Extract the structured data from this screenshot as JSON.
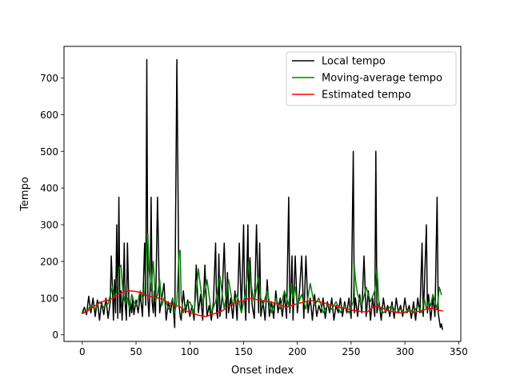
{
  "chart_data": {
    "type": "line",
    "title": "",
    "xlabel": "Onset index",
    "ylabel": "Tempo",
    "xlim": [
      -17,
      352
    ],
    "ylim": [
      -18,
      786
    ],
    "xticks": [
      0,
      50,
      100,
      150,
      200,
      250,
      300,
      350
    ],
    "yticks": [
      0,
      100,
      200,
      300,
      400,
      500,
      600,
      700
    ],
    "grid": false,
    "legend_position": "top-right",
    "series": [
      {
        "name": "Local tempo",
        "color": "#000000",
        "x": [
          0,
          2,
          4,
          6,
          8,
          10,
          12,
          14,
          16,
          18,
          20,
          22,
          24,
          26,
          27,
          28,
          29,
          30,
          31,
          32,
          33,
          34,
          35,
          36,
          37,
          38,
          39,
          40,
          41,
          42,
          43,
          44,
          45,
          46,
          47,
          48,
          50,
          52,
          54,
          56,
          58,
          59,
          60,
          61,
          62,
          63,
          64,
          65,
          66,
          67,
          68,
          70,
          72,
          74,
          76,
          78,
          80,
          82,
          84,
          86,
          88,
          90,
          91,
          92,
          94,
          96,
          98,
          100,
          102,
          104,
          106,
          108,
          110,
          112,
          114,
          116,
          118,
          120,
          122,
          124,
          125,
          126,
          127,
          128,
          130,
          132,
          134,
          135,
          136,
          138,
          140,
          142,
          144,
          146,
          148,
          150,
          151,
          152,
          154,
          155,
          156,
          158,
          160,
          162,
          164,
          165,
          166,
          168,
          170,
          172,
          174,
          176,
          178,
          180,
          182,
          184,
          186,
          188,
          190,
          192,
          193,
          194,
          195,
          196,
          198,
          200,
          202,
          204,
          206,
          208,
          210,
          212,
          214,
          216,
          218,
          220,
          222,
          224,
          226,
          228,
          230,
          232,
          234,
          236,
          238,
          240,
          242,
          244,
          246,
          248,
          250,
          252,
          253,
          254,
          256,
          258,
          260,
          262,
          264,
          266,
          268,
          270,
          272,
          273,
          274,
          276,
          278,
          280,
          282,
          284,
          286,
          288,
          290,
          292,
          294,
          296,
          298,
          300,
          302,
          304,
          306,
          308,
          310,
          312,
          314,
          316,
          317,
          318,
          320,
          321,
          322,
          324,
          326,
          328,
          330,
          331,
          332,
          333,
          334,
          335
        ],
        "y": [
          60,
          75,
          55,
          105,
          60,
          100,
          50,
          95,
          40,
          90,
          55,
          100,
          45,
          90,
          215,
          130,
          40,
          150,
          60,
          300,
          45,
          375,
          60,
          120,
          40,
          100,
          250,
          80,
          40,
          250,
          120,
          50,
          90,
          60,
          100,
          55,
          95,
          60,
          110,
          50,
          250,
          80,
          750,
          100,
          50,
          120,
          375,
          90,
          60,
          120,
          50,
          375,
          60,
          100,
          140,
          40,
          90,
          60,
          100,
          20,
          750,
          80,
          50,
          40,
          120,
          60,
          95,
          50,
          80,
          40,
          190,
          60,
          110,
          40,
          190,
          50,
          80,
          40,
          90,
          250,
          60,
          45,
          220,
          50,
          100,
          250,
          45,
          170,
          60,
          100,
          45,
          120,
          40,
          250,
          60,
          300,
          100,
          40,
          300,
          60,
          210,
          80,
          45,
          300,
          60,
          250,
          50,
          90,
          40,
          150,
          50,
          90,
          45,
          120,
          60,
          100,
          50,
          110,
          45,
          375,
          60,
          120,
          215,
          40,
          215,
          60,
          120,
          215,
          45,
          215,
          60,
          100,
          40,
          110,
          50,
          80,
          60,
          100,
          45,
          90,
          60,
          100,
          40,
          80,
          60,
          100,
          50,
          90,
          60,
          100,
          45,
          500,
          60,
          100,
          50,
          110,
          60,
          215,
          50,
          120,
          40,
          100,
          50,
          500,
          60,
          90,
          40,
          100,
          60,
          80,
          50,
          90,
          45,
          100,
          60,
          80,
          50,
          100,
          60,
          80,
          45,
          90,
          40,
          100,
          60,
          250,
          50,
          120,
          300,
          60,
          110,
          40,
          100,
          50,
          375,
          60,
          40,
          20,
          30,
          15
        ]
      },
      {
        "name": "Moving-average tempo",
        "color": "#008000",
        "x": [
          0,
          4,
          8,
          12,
          16,
          20,
          24,
          28,
          30,
          32,
          34,
          36,
          38,
          40,
          42,
          44,
          46,
          48,
          50,
          52,
          54,
          56,
          58,
          60,
          61,
          62,
          64,
          66,
          68,
          70,
          72,
          74,
          76,
          78,
          80,
          82,
          84,
          86,
          88,
          90,
          91,
          92,
          94,
          96,
          100,
          104,
          108,
          112,
          116,
          120,
          124,
          128,
          132,
          136,
          140,
          144,
          148,
          152,
          155,
          156,
          158,
          160,
          164,
          166,
          168,
          172,
          176,
          180,
          184,
          188,
          192,
          194,
          196,
          198,
          200,
          204,
          208,
          212,
          216,
          220,
          224,
          228,
          232,
          236,
          240,
          244,
          248,
          252,
          253,
          254,
          256,
          260,
          264,
          268,
          272,
          274,
          276,
          280,
          284,
          288,
          292,
          296,
          300,
          304,
          308,
          312,
          316,
          318,
          320,
          322,
          324,
          326,
          328,
          330,
          332,
          334
        ],
        "y": [
          60,
          65,
          80,
          70,
          90,
          75,
          85,
          130,
          100,
          120,
          180,
          190,
          110,
          85,
          100,
          70,
          110,
          90,
          80,
          95,
          120,
          100,
          110,
          250,
          275,
          180,
          120,
          200,
          90,
          110,
          150,
          80,
          100,
          90,
          70,
          80,
          100,
          60,
          90,
          225,
          230,
          100,
          60,
          80,
          90,
          60,
          180,
          80,
          150,
          60,
          90,
          160,
          70,
          150,
          80,
          110,
          60,
          120,
          200,
          160,
          120,
          90,
          160,
          100,
          80,
          120,
          60,
          100,
          70,
          120,
          80,
          140,
          100,
          130,
          80,
          110,
          70,
          140,
          80,
          100,
          60,
          80,
          70,
          90,
          60,
          80,
          60,
          90,
          190,
          150,
          110,
          80,
          130,
          90,
          120,
          180,
          80,
          60,
          70,
          80,
          60,
          70,
          60,
          70,
          60,
          80,
          60,
          100,
          70,
          90,
          80,
          110,
          90,
          70,
          130,
          110
        ]
      },
      {
        "name": "Estimated tempo",
        "color": "#ff0000",
        "x": [
          0,
          5,
          10,
          15,
          20,
          25,
          30,
          35,
          40,
          45,
          50,
          55,
          60,
          65,
          70,
          75,
          80,
          85,
          90,
          95,
          100,
          105,
          110,
          115,
          120,
          125,
          130,
          135,
          140,
          145,
          150,
          155,
          160,
          165,
          170,
          175,
          180,
          185,
          190,
          195,
          200,
          205,
          210,
          215,
          220,
          225,
          230,
          235,
          240,
          245,
          250,
          255,
          260,
          265,
          270,
          275,
          280,
          285,
          290,
          295,
          300,
          305,
          310,
          315,
          320,
          325,
          330,
          335
        ],
        "y": [
          58,
          65,
          75,
          85,
          92,
          95,
          102,
          112,
          118,
          120,
          118,
          115,
          108,
          103,
          100,
          96,
          88,
          80,
          78,
          68,
          60,
          56,
          52,
          50,
          55,
          60,
          65,
          75,
          85,
          90,
          92,
          100,
          97,
          95,
          92,
          90,
          85,
          80,
          75,
          80,
          85,
          88,
          92,
          93,
          90,
          87,
          82,
          78,
          75,
          72,
          68,
          65,
          63,
          62,
          75,
          78,
          72,
          65,
          62,
          60,
          62,
          65,
          62,
          65,
          70,
          72,
          68,
          65
        ]
      }
    ]
  }
}
